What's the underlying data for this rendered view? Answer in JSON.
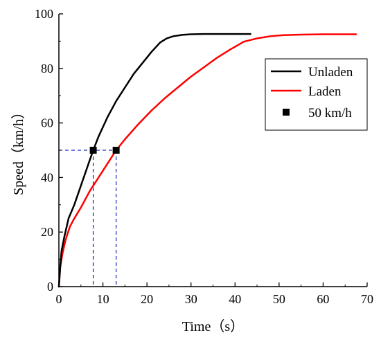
{
  "chart_data": {
    "type": "line",
    "xlabel": "Time（s）",
    "ylabel": "Speed（km/h）",
    "xlim": [
      0,
      70
    ],
    "ylim": [
      0,
      100
    ],
    "xticks": [
      0,
      10,
      20,
      30,
      40,
      50,
      60,
      70
    ],
    "yticks": [
      0,
      20,
      40,
      60,
      80,
      100
    ],
    "grid": false,
    "legend_position": "top-right",
    "series": [
      {
        "name": "Unladen",
        "color": "#000000",
        "x": [
          0,
          0.3,
          0.6,
          1.2,
          2.2,
          3.5,
          5,
          6.5,
          7.8,
          9,
          11,
          13,
          15,
          17,
          19,
          21,
          23,
          24.5,
          26,
          28,
          30,
          33,
          36,
          40,
          43.5
        ],
        "y": [
          0,
          7,
          13,
          18,
          25,
          30,
          37,
          44,
          50,
          55,
          62,
          68,
          73,
          78,
          82,
          86,
          89.5,
          91,
          91.8,
          92.3,
          92.5,
          92.6,
          92.6,
          92.6,
          92.6
        ]
      },
      {
        "name": "Laden",
        "color": "#ff0000",
        "x": [
          0,
          0.3,
          0.8,
          1.5,
          2.5,
          3.5,
          5,
          7,
          9,
          11,
          13,
          15,
          18,
          21,
          24,
          27,
          30,
          33,
          36,
          39,
          42,
          45,
          48,
          51,
          55,
          60,
          65,
          67.5
        ],
        "y": [
          0,
          7,
          12,
          17,
          22,
          25,
          29,
          35,
          40,
          45,
          50,
          54,
          59.5,
          64.5,
          69,
          73,
          77,
          80.5,
          84,
          87,
          89.8,
          91,
          91.8,
          92.2,
          92.4,
          92.5,
          92.5,
          92.5
        ]
      },
      {
        "name": "50 km/h",
        "marker": "square",
        "color": "#000000",
        "points": [
          [
            7.8,
            50
          ],
          [
            13.0,
            50
          ]
        ]
      }
    ],
    "reference_lines": {
      "color": "#1f2fbf",
      "style": "dashed",
      "y_level": 50,
      "x_values": [
        7.8,
        13.0
      ]
    }
  }
}
